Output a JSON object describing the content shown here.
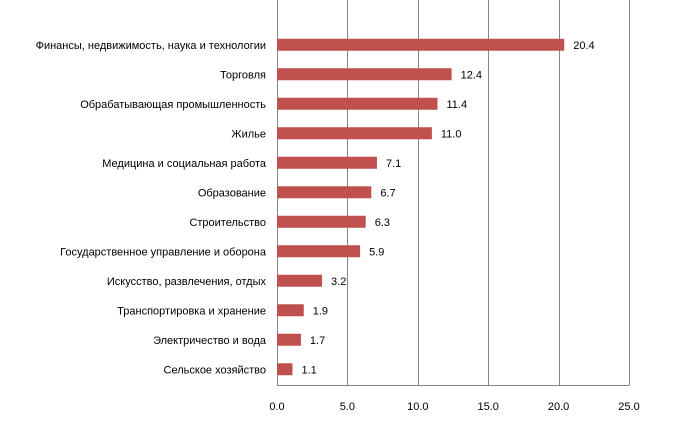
{
  "chart_data": {
    "type": "bar",
    "orientation": "horizontal",
    "categories": [
      "Финансы, недвижимость, наука и технологии",
      "Торговля",
      "Обрабатывающая  промышленность",
      "Жилье",
      "Медицина и социальная работа",
      "Образование",
      "Строительство",
      "Государственное управление и оборона",
      "Искусство, развлечения, отдых",
      "Транспортировка и хранение",
      "Электричество и вода",
      "Сельское хозяйство"
    ],
    "values": [
      20.4,
      12.4,
      11.4,
      11.0,
      7.1,
      6.7,
      6.3,
      5.9,
      3.2,
      1.9,
      1.7,
      1.1
    ],
    "value_labels": [
      "20.4",
      "12.4",
      "11.4",
      "11.0",
      "7.1",
      "6.7",
      "6.3",
      "5.9",
      "3.2",
      "1.9",
      "1.7",
      "1.1"
    ],
    "xlim": [
      0,
      25
    ],
    "xticks": [
      0,
      5,
      10,
      15,
      20,
      25
    ],
    "xtick_labels": [
      "0.0",
      "5.0",
      "10.0",
      "15.0",
      "20.0",
      "25.0"
    ],
    "grid": "vertical",
    "bar_color": "#c0504d",
    "grid_color": "#868686",
    "title": "",
    "xlabel": "",
    "ylabel": ""
  }
}
